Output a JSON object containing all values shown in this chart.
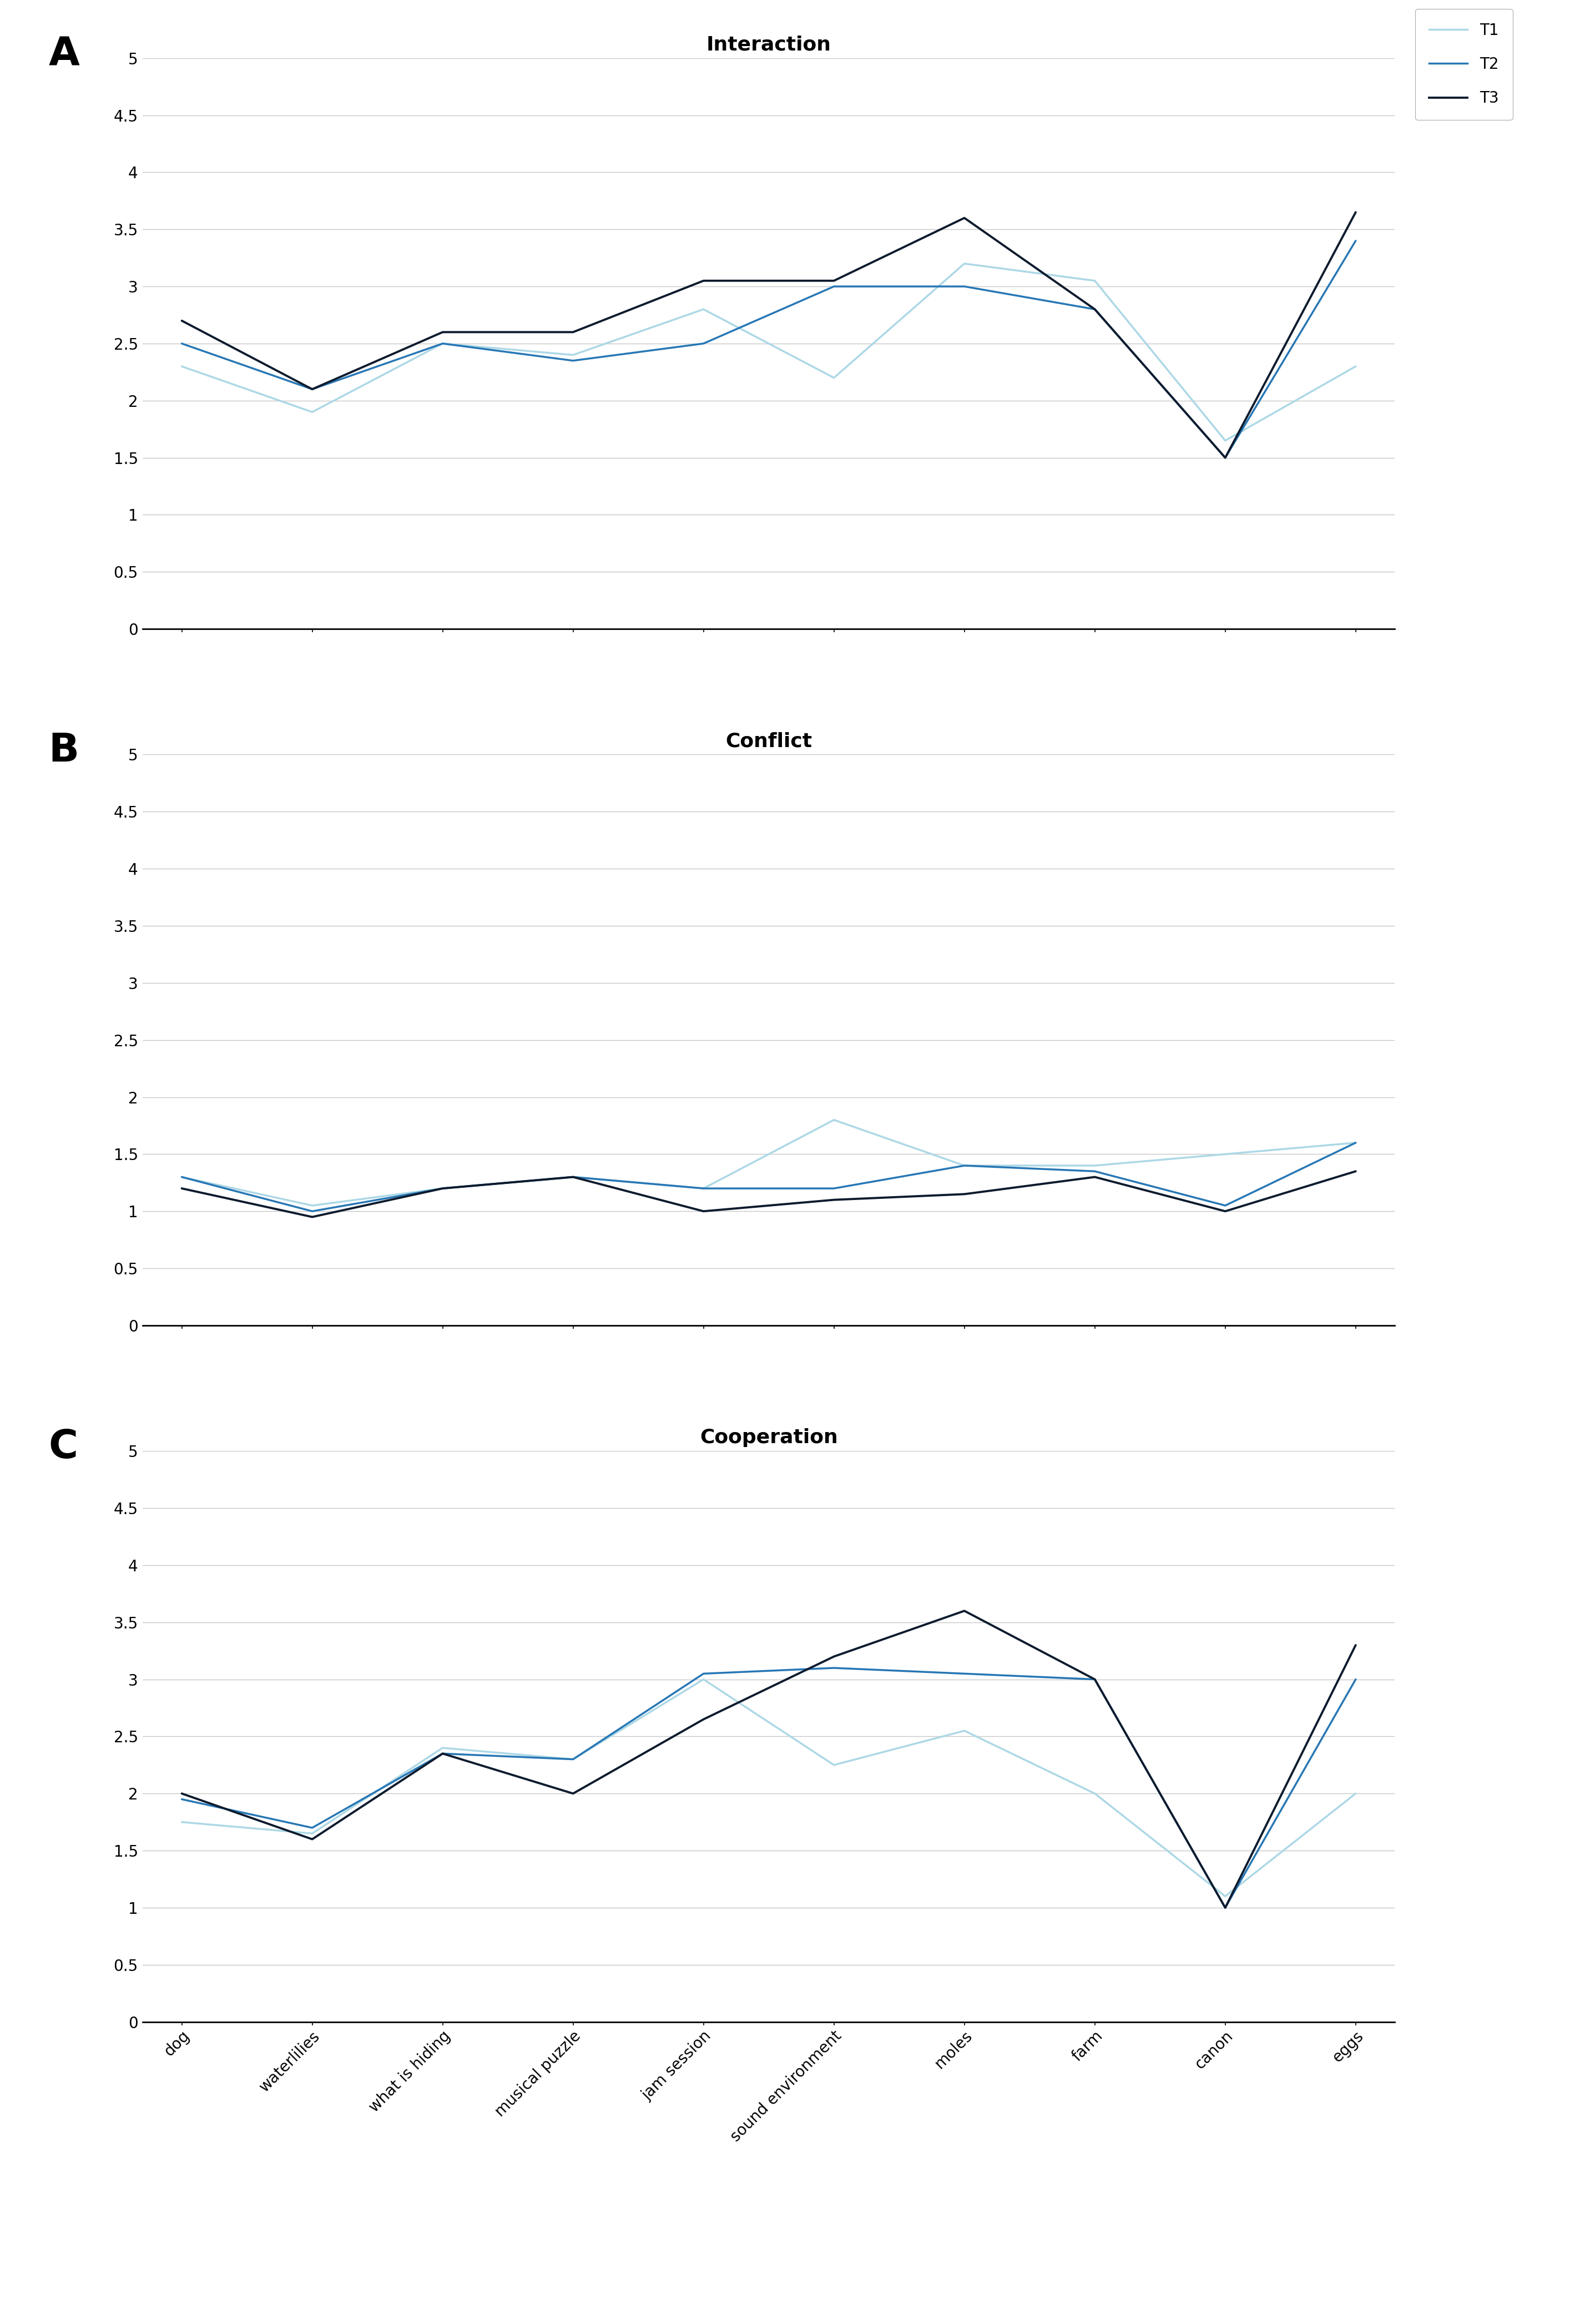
{
  "categories": [
    "dog",
    "waterlilies",
    "what is hiding",
    "musical puzzle",
    "jam session",
    "sound environment",
    "moles",
    "farm",
    "canon",
    "eggs"
  ],
  "interaction": {
    "title": "Interaction",
    "T1": [
      2.3,
      1.9,
      2.5,
      2.4,
      2.8,
      2.2,
      3.2,
      3.05,
      1.65,
      2.3
    ],
    "T2": [
      2.5,
      2.1,
      2.5,
      2.35,
      2.5,
      3.0,
      3.0,
      2.8,
      1.5,
      3.4
    ],
    "T3": [
      2.7,
      2.1,
      2.6,
      2.6,
      3.05,
      3.05,
      3.6,
      2.8,
      1.5,
      3.65
    ]
  },
  "conflict": {
    "title": "Conflict",
    "T1": [
      1.3,
      1.05,
      1.2,
      1.3,
      1.2,
      1.8,
      1.4,
      1.4,
      1.5,
      1.6
    ],
    "T2": [
      1.3,
      1.0,
      1.2,
      1.3,
      1.2,
      1.2,
      1.4,
      1.35,
      1.05,
      1.6
    ],
    "T3": [
      1.2,
      0.95,
      1.2,
      1.3,
      1.0,
      1.1,
      1.15,
      1.3,
      1.0,
      1.35
    ]
  },
  "cooperation": {
    "title": "Cooperation",
    "T1": [
      1.75,
      1.65,
      2.4,
      2.3,
      3.0,
      2.25,
      2.55,
      2.0,
      1.1,
      2.0
    ],
    "T2": [
      1.95,
      1.7,
      2.35,
      2.3,
      3.05,
      3.1,
      3.05,
      3.0,
      1.0,
      3.0
    ],
    "T3": [
      2.0,
      1.6,
      2.35,
      2.0,
      2.65,
      3.2,
      3.6,
      3.0,
      1.0,
      3.3
    ]
  },
  "color_T1": "#add8e6",
  "color_T2": "#2777b5",
  "color_T3": "#0d1b2e",
  "linewidth_T1": 2.5,
  "linewidth_T2": 2.5,
  "linewidth_T3": 2.8,
  "ylim": [
    0,
    5
  ],
  "yticks": [
    0,
    0.5,
    1,
    1.5,
    2,
    2.5,
    3,
    3.5,
    4,
    4.5,
    5
  ],
  "ytick_labels": [
    "0",
    "0.5",
    "1",
    "1.5",
    "2",
    "2.5",
    "3",
    "3.5",
    "4",
    "4.5",
    "5"
  ],
  "panel_labels": [
    "A",
    "B",
    "C"
  ],
  "background_color": "#ffffff",
  "grid_color": "#c8c8c8",
  "tick_fontsize": 20,
  "title_fontsize": 26,
  "panel_label_fontsize": 52,
  "legend_fontsize": 20
}
